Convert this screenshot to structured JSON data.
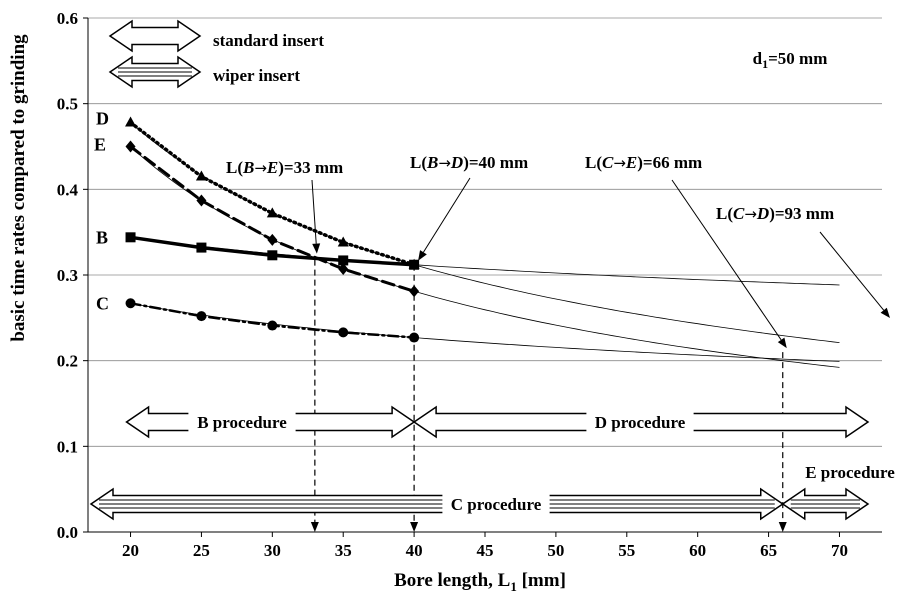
{
  "chart_data": {
    "type": "line",
    "xlabel": "Bore length, L",
    "xlabel_sub": "1",
    "xlabel_unit": " [mm]",
    "ylabel": "basic time rates compared to grinding",
    "xlim": [
      17,
      73
    ],
    "ylim": [
      0,
      0.6
    ],
    "xticks": [
      20,
      25,
      30,
      35,
      40,
      45,
      50,
      55,
      60,
      65,
      70
    ],
    "yticks": [
      0.0,
      0.1,
      0.2,
      0.3,
      0.4,
      0.5,
      0.6
    ],
    "ytick_labels": [
      "0.0",
      "0.1",
      "0.2",
      "0.3",
      "0.4",
      "0.5",
      "0.6"
    ],
    "grid": "horizontal",
    "series": [
      {
        "name": "D",
        "x": [
          20,
          25,
          30,
          35,
          40
        ],
        "y": [
          0.478,
          0.415,
          0.372,
          0.338,
          0.312
        ],
        "marker": "triangle",
        "dash": "dotted",
        "width": 3.5,
        "fit_end_y": 0.235
      },
      {
        "name": "E",
        "x": [
          20,
          25,
          30,
          35,
          40
        ],
        "y": [
          0.45,
          0.387,
          0.341,
          0.307,
          0.281
        ],
        "marker": "diamond",
        "dash": "dashed",
        "width": 3,
        "fit_end_y": 0.203
      },
      {
        "name": "B",
        "x": [
          20,
          25,
          30,
          35,
          40
        ],
        "y": [
          0.344,
          0.332,
          0.323,
          0.317,
          0.312
        ],
        "marker": "square",
        "dash": "solid",
        "width": 3.5,
        "fit_end_y": 0.296
      },
      {
        "name": "C",
        "x": [
          20,
          25,
          30,
          35,
          40
        ],
        "y": [
          0.267,
          0.252,
          0.241,
          0.233,
          0.227
        ],
        "marker": "circle",
        "dash": "dashdot",
        "width": 2.5,
        "fit_end_y": 0.208
      }
    ],
    "annotations": {
      "d1": {
        "base": "d",
        "sub": "1",
        "rest": "=50 mm"
      },
      "legend_standard": "standard insert",
      "legend_wiper": "wiper insert",
      "crossings": [
        {
          "pre": "L(",
          "a": "B",
          "arrow": "→",
          "b": "E",
          "post": ")=33 mm",
          "x": 33,
          "y": 0.318
        },
        {
          "pre": "L(",
          "a": "B",
          "arrow": "→",
          "b": "D",
          "post": ")=40 mm",
          "x": 40,
          "y": 0.312
        },
        {
          "pre": "L(",
          "a": "C",
          "arrow": "→",
          "b": "E",
          "post": ")=66 mm",
          "x": 66,
          "y": 0.21
        },
        {
          "pre": "L(",
          "a": "C",
          "arrow": "→",
          "b": "D",
          "post": ")=93 mm",
          "x": 93,
          "y": 0.2
        }
      ]
    },
    "procedures": [
      {
        "label": "B procedure",
        "from": 20,
        "to": 40,
        "type": "standard"
      },
      {
        "label": "D procedure",
        "from": 40,
        "to": 73,
        "type": "standard"
      },
      {
        "label": "C procedure",
        "from": 17,
        "to": 66,
        "type": "wiper"
      },
      {
        "label": "E procedure",
        "from": 66,
        "to": 73,
        "type": "wiper"
      }
    ]
  }
}
